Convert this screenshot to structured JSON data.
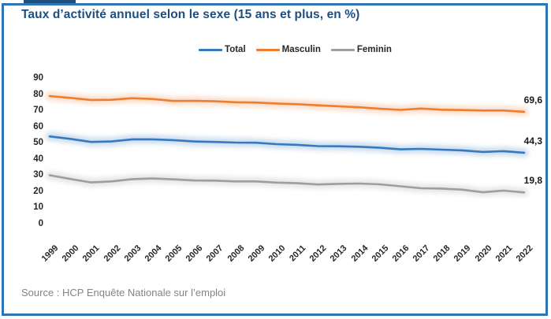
{
  "header": {
    "title": "Taux d’activité annuel selon le sexe (15 ans et plus, en %)"
  },
  "footer": {
    "source": "Source : HCP Enquête Nationale sur l’emploi"
  },
  "colors": {
    "frame": "#2E75B6",
    "title_text": "#1C4E80",
    "total": "#3779BE",
    "masculin": "#ED7D31",
    "feminin": "#9E9E9E",
    "axis_text": "#262626",
    "end_label_text": "#1a1a1a",
    "source_text": "#848484"
  },
  "chart_data": {
    "type": "line",
    "title": "Taux d’activité annuel selon le sexe (15 ans et plus, en %)",
    "xlabel": "",
    "ylabel": "",
    "ylim": [
      0,
      90
    ],
    "yticks": [
      90,
      80,
      70,
      60,
      50,
      40,
      30,
      20,
      10,
      0
    ],
    "grid": false,
    "legend_position": "top-center",
    "categories": [
      1999,
      2000,
      2001,
      2002,
      2003,
      2004,
      2005,
      2006,
      2007,
      2008,
      2009,
      2010,
      2011,
      2012,
      2013,
      2014,
      2015,
      2016,
      2017,
      2018,
      2019,
      2020,
      2021,
      2022
    ],
    "series": [
      {
        "name": "Total",
        "color_key": "total",
        "end_label": "44,3",
        "values": [
          54.4,
          52.9,
          51.0,
          51.3,
          52.6,
          52.6,
          52.1,
          51.3,
          51.0,
          50.6,
          50.5,
          49.6,
          49.2,
          48.4,
          48.3,
          48.0,
          47.4,
          46.4,
          46.7,
          46.2,
          45.8,
          44.8,
          45.3,
          44.3
        ]
      },
      {
        "name": "Masculin",
        "color_key": "masculin",
        "end_label": "69,6",
        "values": [
          79.3,
          78.2,
          76.9,
          77.0,
          78.0,
          77.5,
          76.3,
          76.4,
          76.1,
          75.5,
          75.3,
          74.7,
          74.3,
          73.6,
          73.0,
          72.4,
          71.5,
          70.8,
          71.6,
          70.9,
          70.7,
          70.4,
          70.4,
          69.6
        ]
      },
      {
        "name": "Feminin",
        "color_key": "feminin",
        "end_label": "19,8",
        "values": [
          30.4,
          28.1,
          26.0,
          26.6,
          28.0,
          28.4,
          27.9,
          27.2,
          27.1,
          26.6,
          26.6,
          25.9,
          25.5,
          24.7,
          25.1,
          25.3,
          24.8,
          23.6,
          22.4,
          22.2,
          21.5,
          19.9,
          20.9,
          19.8
        ]
      }
    ]
  }
}
